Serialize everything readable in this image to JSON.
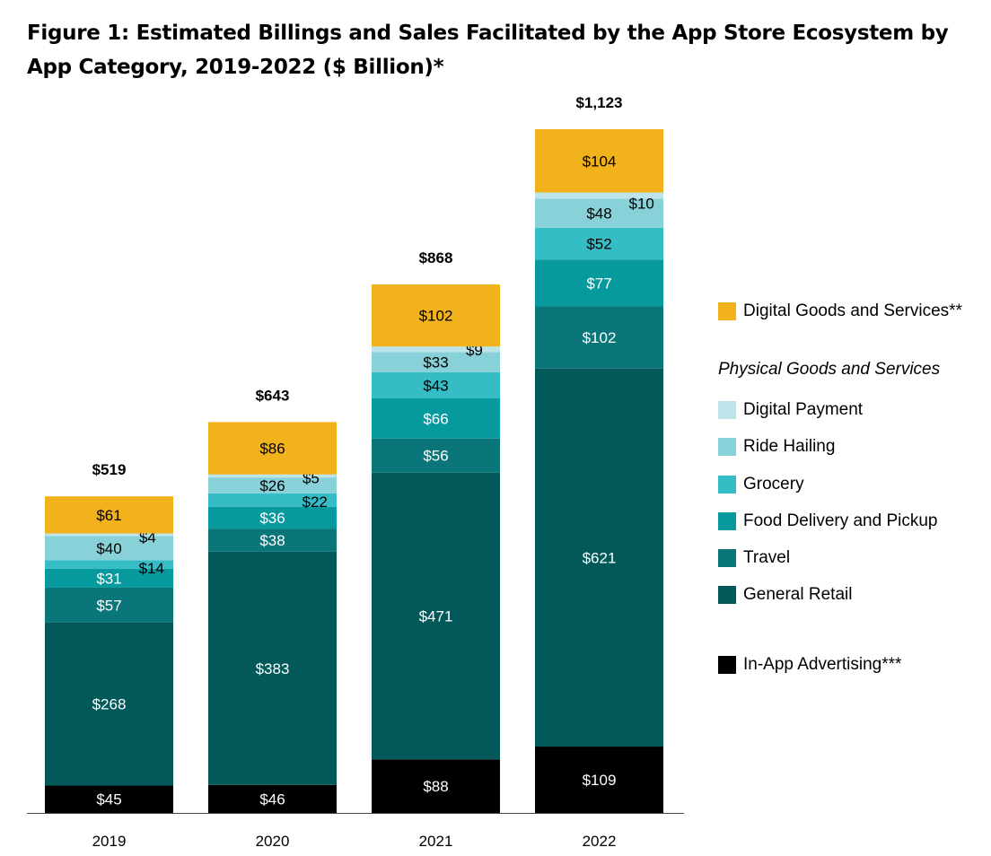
{
  "title": "Figure 1: Estimated Billings and Sales Facilitated by the App Store Ecosystem by App Category, 2019-2022 ($ Billion)*",
  "colors": {
    "in_app_advertising": "#000000",
    "general_retail": "#03595a",
    "travel": "#0b7679",
    "food_delivery": "#069a9f",
    "grocery": "#35bcc5",
    "ride_hailing": "#88d1d8",
    "digital_payment": "#bde5e9",
    "digital_goods": "#f2b21c"
  },
  "legend": {
    "items": [
      {
        "label": "Digital Goods and Services**",
        "color": "#f2b21c"
      },
      {
        "label": "Digital Payment",
        "color": "#bde5e9"
      },
      {
        "label": "Ride Hailing",
        "color": "#88d1d8"
      },
      {
        "label": "Grocery",
        "color": "#35bcc5"
      },
      {
        "label": "Food Delivery and Pickup",
        "color": "#069a9f"
      },
      {
        "label": "Travel",
        "color": "#0b7679"
      },
      {
        "label": "General Retail",
        "color": "#03595a"
      },
      {
        "label": "In-App Advertising***",
        "color": "#000000"
      }
    ],
    "heading": "Physical Goods and Services"
  },
  "chart_data": {
    "type": "bar",
    "stacked": true,
    "categories": [
      "2019",
      "2020",
      "2021",
      "2022"
    ],
    "series": [
      {
        "name": "In-App Advertising***",
        "values": [
          45,
          46,
          88,
          109
        ],
        "labels": [
          "$45",
          "$46",
          "$88",
          "$109"
        ]
      },
      {
        "name": "General Retail",
        "values": [
          268,
          383,
          471,
          621
        ],
        "labels": [
          "$268",
          "$383",
          "$471",
          "$621"
        ]
      },
      {
        "name": "Travel",
        "values": [
          57,
          38,
          56,
          102
        ],
        "labels": [
          "$57",
          "$38",
          "$56",
          "$102"
        ]
      },
      {
        "name": "Food Delivery and Pickup",
        "values": [
          31,
          36,
          66,
          77
        ],
        "labels": [
          "$31",
          "$36",
          "$66",
          "$77"
        ]
      },
      {
        "name": "Grocery",
        "values": [
          14,
          22,
          43,
          52
        ],
        "labels": [
          "$14",
          "$22",
          "$43",
          "$52"
        ]
      },
      {
        "name": "Ride Hailing",
        "values": [
          40,
          26,
          33,
          48
        ],
        "labels": [
          "$40",
          "$26",
          "$33",
          "$48"
        ]
      },
      {
        "name": "Digital Payment",
        "values": [
          4,
          5,
          9,
          10
        ],
        "labels": [
          "$4",
          "$5",
          "$9",
          "$10"
        ]
      },
      {
        "name": "Digital Goods and Services**",
        "values": [
          61,
          86,
          102,
          104
        ],
        "labels": [
          "$61",
          "$86",
          "$102",
          "$104"
        ]
      }
    ],
    "totals": [
      519,
      643,
      868,
      1123
    ],
    "total_labels": [
      "$519",
      "$643",
      "$868",
      "$1,123"
    ],
    "ylim": [
      0,
      1123
    ]
  }
}
